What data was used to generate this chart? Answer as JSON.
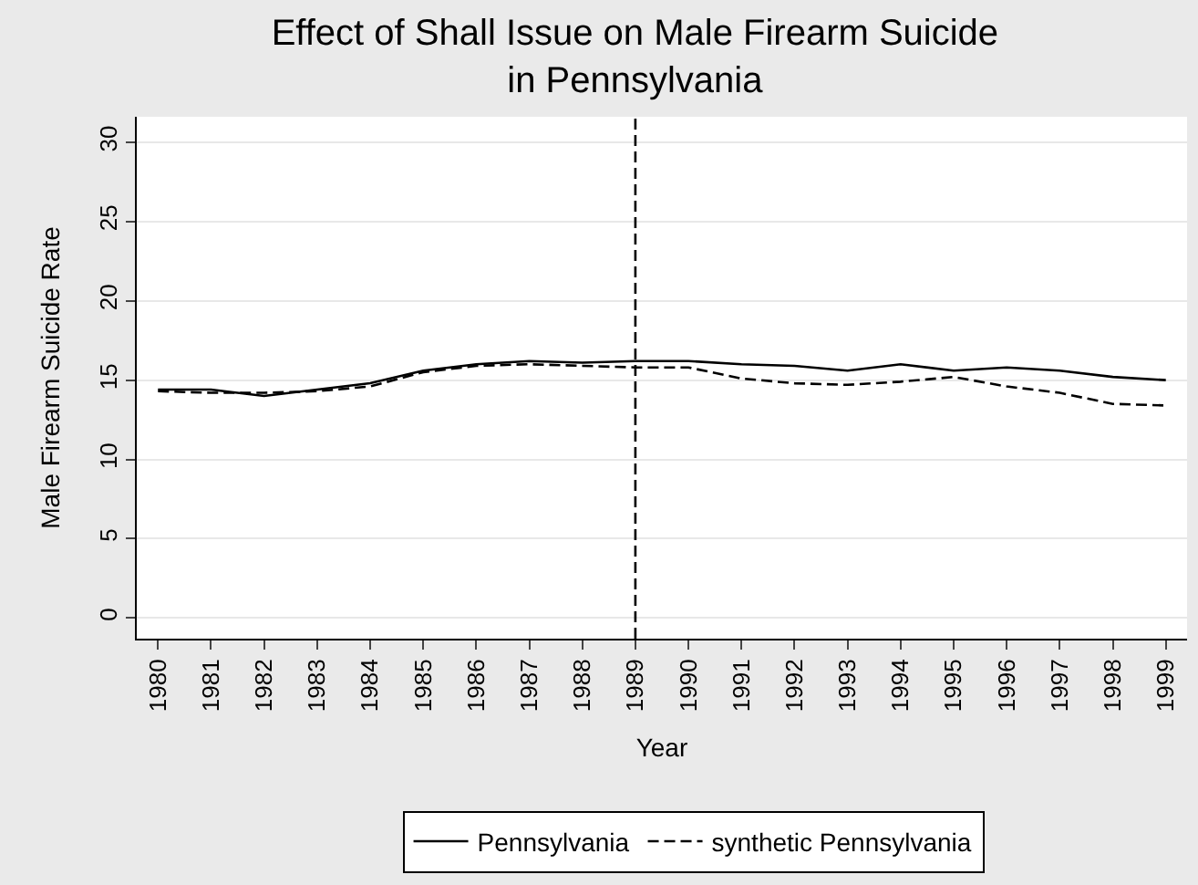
{
  "chart_data": {
    "type": "line",
    "title": "Effect of Shall Issue on Male Firearm Suicide\nin Pennsylvania",
    "xlabel": "Year",
    "ylabel": "Male Firearm Suicide Rate",
    "x": [
      1980,
      1981,
      1982,
      1983,
      1984,
      1985,
      1986,
      1987,
      1988,
      1989,
      1990,
      1991,
      1992,
      1993,
      1994,
      1995,
      1996,
      1997,
      1998,
      1999
    ],
    "series": [
      {
        "name": "Pennsylvania",
        "color": "#000000",
        "line_style": "solid",
        "values": [
          14.4,
          14.4,
          14.0,
          14.4,
          14.8,
          15.6,
          16.0,
          16.2,
          16.1,
          16.2,
          16.2,
          16.0,
          15.9,
          15.6,
          16.0,
          15.6,
          15.8,
          15.6,
          15.2,
          15.0
        ]
      },
      {
        "name": "synthetic Pennsylvania",
        "color": "#000000",
        "line_style": "dashed",
        "values": [
          14.3,
          14.2,
          14.2,
          14.3,
          14.6,
          15.5,
          15.9,
          16.0,
          15.9,
          15.8,
          15.8,
          15.1,
          14.8,
          14.7,
          14.9,
          15.2,
          14.6,
          14.2,
          13.5,
          13.4
        ]
      }
    ],
    "xlim": [
      1979.6,
      1999.4
    ],
    "xticks": [
      1980,
      1981,
      1982,
      1983,
      1984,
      1985,
      1986,
      1987,
      1988,
      1989,
      1990,
      1991,
      1992,
      1993,
      1994,
      1995,
      1996,
      1997,
      1998,
      1999
    ],
    "ylim": [
      -1.3,
      31.6
    ],
    "yticks": [
      0,
      5,
      10,
      15,
      20,
      25,
      30
    ],
    "ref_lines": [
      {
        "axis": "x",
        "value": 1989,
        "color": "#000000",
        "line_style": "dashed"
      }
    ],
    "grid": "y",
    "legend": "bottom",
    "marker": "none"
  }
}
